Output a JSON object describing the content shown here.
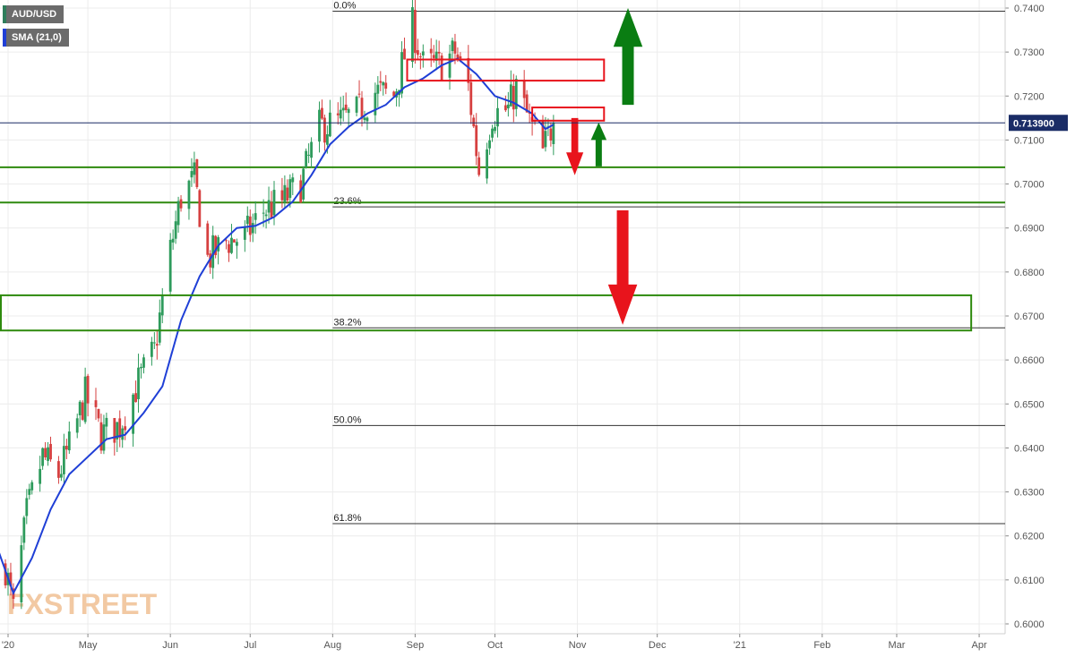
{
  "legend": {
    "symbol": "AUD/USD",
    "symbol_color": "#2e7d5b",
    "indicator": "SMA (21,0)",
    "indicator_color": "#1f3fd6"
  },
  "watermark": "FXSTREET",
  "chart_data": {
    "type": "candlestick",
    "symbol": "AUD/USD",
    "timeframe": "daily",
    "y_range": [
      0.5982,
      0.7418
    ],
    "y_ticks": [
      0.74,
      0.73,
      0.72,
      0.71,
      0.7,
      0.69,
      0.68,
      0.67,
      0.66,
      0.65,
      0.64,
      0.63,
      0.62,
      0.61,
      0.6
    ],
    "y_tick_labels": [
      "0.7400",
      "0.7300",
      "0.7200",
      "0.7100",
      "0.7000",
      "0.6900",
      "0.6800",
      "0.6700",
      "0.6600",
      "0.6500",
      "0.6400",
      "0.6300",
      "0.6200",
      "0.6100",
      "0.6000"
    ],
    "x_labels": [
      {
        "label": "'20",
        "date": "2020-04-01"
      },
      {
        "label": "May",
        "date": "2020-05-01"
      },
      {
        "label": "Jun",
        "date": "2020-06-01"
      },
      {
        "label": "Jul",
        "date": "2020-07-01"
      },
      {
        "label": "Aug",
        "date": "2020-08-01"
      },
      {
        "label": "Sep",
        "date": "2020-09-01"
      },
      {
        "label": "Oct",
        "date": "2020-10-01"
      },
      {
        "label": "Nov",
        "date": "2020-11-01"
      },
      {
        "label": "Dec",
        "date": "2020-12-01"
      },
      {
        "label": "'21",
        "date": "2021-01-01"
      },
      {
        "label": "Feb",
        "date": "2021-02-01"
      },
      {
        "label": "Mar",
        "date": "2021-03-01"
      },
      {
        "label": "Apr",
        "date": "2021-04-01"
      }
    ],
    "last_price": {
      "label": "0.713900",
      "value": 0.7139,
      "line_color": "#1a2c66",
      "badge_color": "#1a2c66"
    },
    "close_path": [
      [
        "2020-03-31",
        0.613
      ],
      [
        "2020-04-03",
        0.603
      ],
      [
        "2020-04-08",
        0.625
      ],
      [
        "2020-04-14",
        0.638
      ],
      [
        "2020-04-20",
        0.634
      ],
      [
        "2020-04-24",
        0.64
      ],
      [
        "2020-04-30",
        0.652
      ],
      [
        "2020-05-06",
        0.643
      ],
      [
        "2020-05-13",
        0.645
      ],
      [
        "2020-05-20",
        0.655
      ],
      [
        "2020-05-26",
        0.662
      ],
      [
        "2020-06-01",
        0.685
      ],
      [
        "2020-06-05",
        0.697
      ],
      [
        "2020-06-10",
        0.701
      ],
      [
        "2020-06-15",
        0.683
      ],
      [
        "2020-06-22",
        0.687
      ],
      [
        "2020-06-29",
        0.688
      ],
      [
        "2020-07-06",
        0.694
      ],
      [
        "2020-07-13",
        0.696
      ],
      [
        "2020-07-20",
        0.7
      ],
      [
        "2020-07-27",
        0.713
      ],
      [
        "2020-08-03",
        0.714
      ],
      [
        "2020-08-10",
        0.716
      ],
      [
        "2020-08-17",
        0.721
      ],
      [
        "2020-08-24",
        0.72
      ],
      [
        "2020-08-31",
        0.736
      ],
      [
        "2020-09-04",
        0.727
      ],
      [
        "2020-09-10",
        0.727
      ],
      [
        "2020-09-16",
        0.73
      ],
      [
        "2020-09-21",
        0.722
      ],
      [
        "2020-09-25",
        0.703
      ],
      [
        "2020-09-30",
        0.716
      ],
      [
        "2020-10-06",
        0.717
      ],
      [
        "2020-10-09",
        0.722
      ],
      [
        "2020-10-14",
        0.714
      ],
      [
        "2020-10-19",
        0.707
      ],
      [
        "2020-10-21",
        0.711
      ],
      [
        "2020-10-23",
        0.7139
      ]
    ],
    "sma_21": [
      [
        "2020-03-27",
        0.619
      ],
      [
        "2020-04-03",
        0.607
      ],
      [
        "2020-04-10",
        0.615
      ],
      [
        "2020-04-17",
        0.626
      ],
      [
        "2020-04-24",
        0.634
      ],
      [
        "2020-05-01",
        0.638
      ],
      [
        "2020-05-08",
        0.642
      ],
      [
        "2020-05-15",
        0.643
      ],
      [
        "2020-05-22",
        0.648
      ],
      [
        "2020-05-29",
        0.654
      ],
      [
        "2020-06-05",
        0.669
      ],
      [
        "2020-06-12",
        0.679
      ],
      [
        "2020-06-19",
        0.686
      ],
      [
        "2020-06-26",
        0.69
      ],
      [
        "2020-07-03",
        0.6905
      ],
      [
        "2020-07-10",
        0.6925
      ],
      [
        "2020-07-17",
        0.696
      ],
      [
        "2020-07-24",
        0.702
      ],
      [
        "2020-07-31",
        0.709
      ],
      [
        "2020-08-07",
        0.713
      ],
      [
        "2020-08-14",
        0.716
      ],
      [
        "2020-08-21",
        0.718
      ],
      [
        "2020-08-28",
        0.722
      ],
      [
        "2020-09-04",
        0.724
      ],
      [
        "2020-09-11",
        0.727
      ],
      [
        "2020-09-17",
        0.7285
      ],
      [
        "2020-09-24",
        0.725
      ],
      [
        "2020-10-01",
        0.72
      ],
      [
        "2020-10-08",
        0.7185
      ],
      [
        "2020-10-15",
        0.716
      ],
      [
        "2020-10-20",
        0.7125
      ],
      [
        "2020-10-23",
        0.7135
      ]
    ],
    "fibonacci": [
      {
        "label": "0.0%",
        "value": 0.7393,
        "start": "2020-08-01"
      },
      {
        "label": "23.6%",
        "value": 0.6948,
        "start": "2020-08-01"
      },
      {
        "label": "38.2%",
        "value": 0.6673,
        "start": "2020-08-01"
      },
      {
        "label": "50.0%",
        "value": 0.6451,
        "start": "2020-08-01"
      },
      {
        "label": "61.8%",
        "value": 0.6228,
        "start": "2020-08-01"
      }
    ],
    "horizontal_lines": [
      {
        "value": 0.7038,
        "color": "#2e8a0e"
      },
      {
        "value": 0.6958,
        "color": "#2e8a0e"
      }
    ],
    "zones": [
      {
        "from": "2020-08-29",
        "to": "2020-11-11",
        "low": 0.7235,
        "high": 0.7283,
        "color": "#e8141c"
      },
      {
        "from": "2020-10-15",
        "to": "2020-11-11",
        "low": 0.7144,
        "high": 0.7174,
        "color": "#e8141c"
      },
      {
        "from": "2020-03-22",
        "to": "2021-03-29",
        "low": 0.6667,
        "high": 0.6747,
        "color": "#2e8a0e"
      }
    ],
    "arrows": [
      {
        "direction": "up",
        "color": "#0a7d12",
        "date": "2020-11-20",
        "from": 0.718,
        "to": 0.74
      },
      {
        "direction": "down",
        "color": "#e8141c",
        "date": "2020-10-31",
        "from": 0.715,
        "to": 0.702
      },
      {
        "direction": "up",
        "color": "#0a7d12",
        "date": "2020-11-09",
        "from": 0.704,
        "to": 0.714
      },
      {
        "direction": "down",
        "color": "#e8141c",
        "date": "2020-11-18",
        "from": 0.694,
        "to": 0.668
      }
    ],
    "colors": {
      "up": "#2e9b5c",
      "down": "#d64040",
      "sma": "#1f3fd6",
      "grid": "#ececec"
    },
    "grid": true
  }
}
